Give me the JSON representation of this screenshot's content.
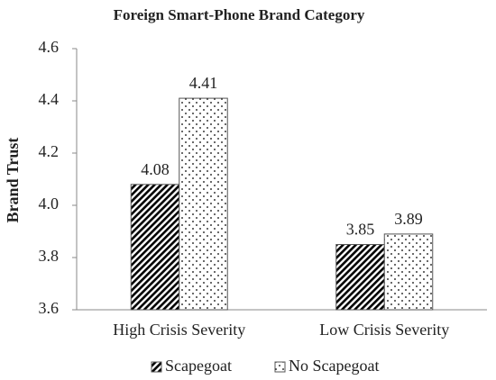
{
  "chart_data": {
    "type": "bar",
    "title": "Foreign Smart-Phone  Brand Category",
    "y_label": "Brand Trust",
    "categories": [
      "High Crisis Severity",
      "Low Crisis Severity"
    ],
    "series": [
      {
        "name": "Scapegoat",
        "color": "#000000",
        "pattern": "hatch",
        "values": [
          4.08,
          3.85
        ]
      },
      {
        "name": "No Scapegoat",
        "color": "#000000",
        "pattern": "dots",
        "values": [
          4.41,
          3.89
        ]
      }
    ],
    "ylim": [
      3.6,
      4.6
    ],
    "yticks": [
      3.6,
      3.8,
      {
        "value": 4,
        "label": "4.0"
      },
      4.2,
      4.4,
      4.6
    ],
    "grid": false,
    "legend": "bottom"
  }
}
